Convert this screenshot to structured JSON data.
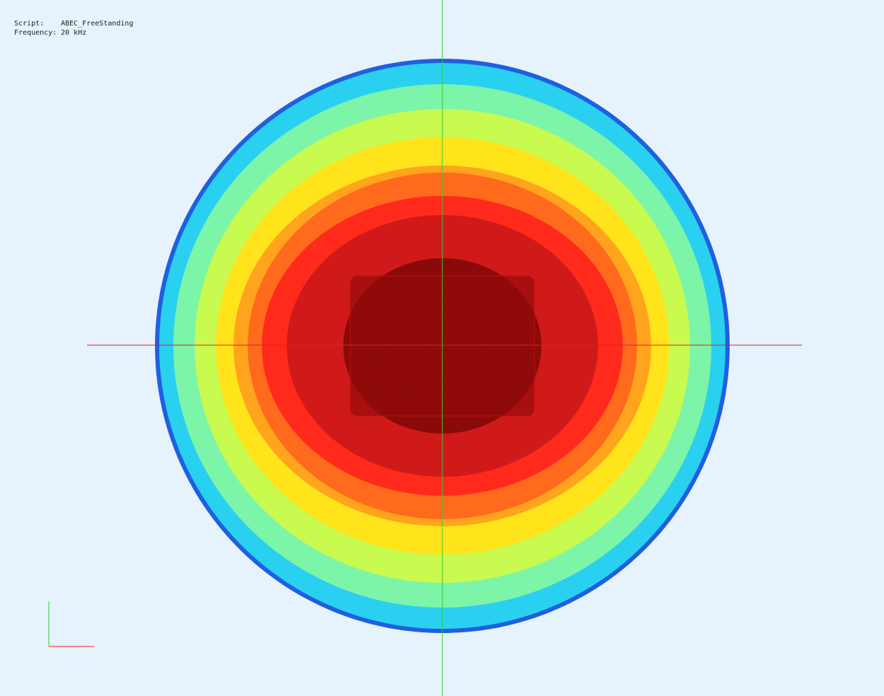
{
  "header": {
    "script_label": "Script:",
    "script_value": "ABEC_FreeStanding",
    "frequency_label": "Frequency:",
    "frequency_value": "20 kHz"
  }
}
